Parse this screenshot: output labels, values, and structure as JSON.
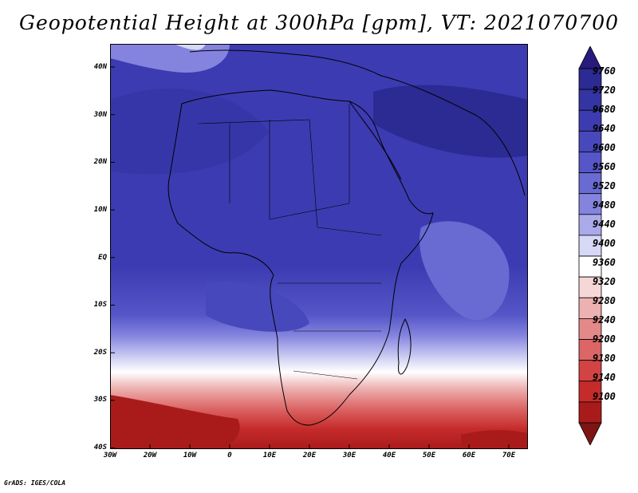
{
  "title": "Geopotential Height at 300hPa [gpm], VT: 2021070700",
  "footer": "GrADS: IGES/COLA",
  "map": {
    "lat_labels": [
      "40N",
      "30N",
      "20N",
      "10N",
      "EQ",
      "10S",
      "20S",
      "30S",
      "40S"
    ],
    "lon_labels": [
      "30W",
      "20W",
      "10W",
      "0",
      "10E",
      "20E",
      "30E",
      "40E",
      "50E",
      "60E",
      "70E"
    ]
  },
  "colorbar": {
    "labels": [
      "9760",
      "9720",
      "9680",
      "9640",
      "9600",
      "9560",
      "9520",
      "9480",
      "9440",
      "9400",
      "9360",
      "9320",
      "9280",
      "9240",
      "9200",
      "9180",
      "9140",
      "9100"
    ],
    "colors": [
      "#271b7e",
      "#2c2a93",
      "#3434a3",
      "#3d3bb1",
      "#4848bd",
      "#5656c8",
      "#6a6ad3",
      "#8484df",
      "#aaaaeb",
      "#d7d7f6",
      "#ffffff",
      "#f6d7d7",
      "#edb1b1",
      "#e48989",
      "#dc6565",
      "#d44343",
      "#c62b2b",
      "#a91b1b",
      "#7e1414"
    ]
  },
  "colors": {
    "max": "#271b7e",
    "min": "#7e1414",
    "high": "#3d3bb1",
    "low": "#a91b1b"
  }
}
